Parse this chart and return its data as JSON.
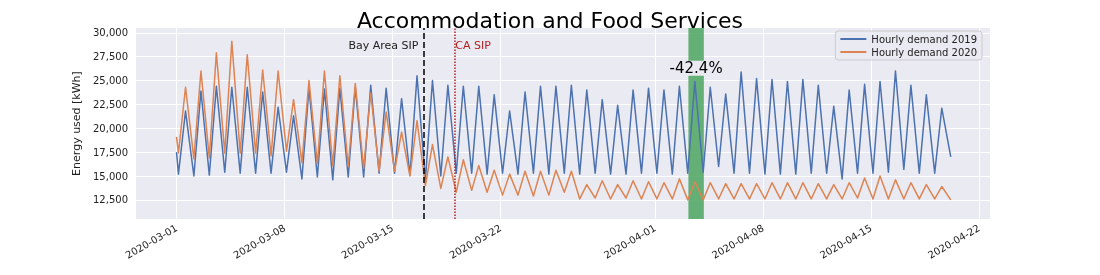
{
  "chart_data": {
    "type": "line",
    "title": "Accommodation and Food Services",
    "ylabel": "Energy used [kWh]",
    "x": [
      "2020-03-01T00:00",
      "2020-03-01T03:00",
      "2020-03-01T14:00",
      "2020-03-02T03:00",
      "2020-03-02T14:00",
      "2020-03-03T03:00",
      "2020-03-03T14:00",
      "2020-03-04T03:00",
      "2020-03-04T14:00",
      "2020-03-05T03:00",
      "2020-03-05T14:00",
      "2020-03-06T03:00",
      "2020-03-06T14:00",
      "2020-03-07T03:00",
      "2020-03-07T14:00",
      "2020-03-08T03:00",
      "2020-03-08T14:00",
      "2020-03-09T03:00",
      "2020-03-09T14:00",
      "2020-03-10T03:00",
      "2020-03-10T14:00",
      "2020-03-11T03:00",
      "2020-03-11T14:00",
      "2020-03-12T03:00",
      "2020-03-12T14:00",
      "2020-03-13T03:00",
      "2020-03-13T14:00",
      "2020-03-14T03:00",
      "2020-03-14T14:00",
      "2020-03-15T03:00",
      "2020-03-15T14:00",
      "2020-03-16T03:00",
      "2020-03-16T14:00",
      "2020-03-17T03:00",
      "2020-03-17T14:00",
      "2020-03-18T03:00",
      "2020-03-18T14:00",
      "2020-03-19T03:00",
      "2020-03-19T14:00",
      "2020-03-20T03:00",
      "2020-03-20T14:00",
      "2020-03-21T03:00",
      "2020-03-21T14:00",
      "2020-03-22T03:00",
      "2020-03-22T14:00",
      "2020-03-23T03:00",
      "2020-03-23T14:00",
      "2020-03-24T03:00",
      "2020-03-24T14:00",
      "2020-03-25T03:00",
      "2020-03-25T14:00",
      "2020-03-26T03:00",
      "2020-03-26T14:00",
      "2020-03-27T03:00",
      "2020-03-27T14:00",
      "2020-03-28T03:00",
      "2020-03-28T14:00",
      "2020-03-29T03:00",
      "2020-03-29T14:00",
      "2020-03-30T03:00",
      "2020-03-30T14:00",
      "2020-03-31T03:00",
      "2020-03-31T14:00",
      "2020-04-01T03:00",
      "2020-04-01T14:00",
      "2020-04-02T03:00",
      "2020-04-02T14:00",
      "2020-04-03T03:00",
      "2020-04-03T14:00",
      "2020-04-04T03:00",
      "2020-04-04T14:00",
      "2020-04-05T03:00",
      "2020-04-05T14:00",
      "2020-04-06T03:00",
      "2020-04-06T14:00",
      "2020-04-07T03:00",
      "2020-04-07T14:00",
      "2020-04-08T03:00",
      "2020-04-08T14:00",
      "2020-04-09T03:00",
      "2020-04-09T14:00",
      "2020-04-10T03:00",
      "2020-04-10T14:00",
      "2020-04-11T03:00",
      "2020-04-11T14:00",
      "2020-04-12T03:00",
      "2020-04-12T14:00",
      "2020-04-13T03:00",
      "2020-04-13T14:00",
      "2020-04-14T03:00",
      "2020-04-14T14:00",
      "2020-04-15T03:00",
      "2020-04-15T14:00",
      "2020-04-16T03:00",
      "2020-04-16T14:00",
      "2020-04-17T03:00",
      "2020-04-17T14:00",
      "2020-04-18T03:00",
      "2020-04-18T14:00",
      "2020-04-19T03:00",
      "2020-04-19T14:00",
      "2020-04-20T04:00"
    ],
    "series": [
      {
        "name": "Hourly demand 2019",
        "color": "#4c72b0",
        "values": [
          17500,
          15200,
          21800,
          15000,
          23900,
          15100,
          24400,
          15400,
          24300,
          15300,
          24300,
          15300,
          23800,
          15300,
          22200,
          15400,
          21300,
          14700,
          24200,
          14900,
          24100,
          14600,
          24200,
          14900,
          24300,
          14900,
          24500,
          15300,
          24200,
          15300,
          23100,
          15100,
          25500,
          14600,
          25000,
          15000,
          24500,
          15300,
          24400,
          15300,
          24400,
          15200,
          23500,
          15300,
          21800,
          15200,
          23800,
          15300,
          24400,
          15200,
          24400,
          15300,
          24500,
          15200,
          24000,
          15300,
          23000,
          15200,
          22400,
          15200,
          24000,
          15300,
          24200,
          15300,
          24000,
          15200,
          24400,
          15300,
          24900,
          15400,
          24300,
          16000,
          23600,
          15300,
          25900,
          15300,
          25200,
          15200,
          25100,
          15200,
          24900,
          15200,
          25100,
          15300,
          24500,
          15300,
          22300,
          14700,
          24000,
          15300,
          24600,
          15300,
          24900,
          15400,
          26000,
          15700,
          24500,
          15300,
          23500,
          15300,
          22100,
          17000
        ]
      },
      {
        "name": "Hourly demand 2020",
        "color": "#dd8452",
        "values": [
          19100,
          17400,
          24300,
          16800,
          26000,
          16900,
          27900,
          17400,
          29100,
          17400,
          27700,
          17400,
          26100,
          17100,
          26000,
          17600,
          23000,
          16400,
          25000,
          16300,
          26000,
          16100,
          25500,
          16000,
          24700,
          15800,
          23700,
          15500,
          21700,
          15500,
          19600,
          15000,
          20800,
          14000,
          18300,
          13700,
          17000,
          13300,
          16700,
          13500,
          16100,
          13300,
          15600,
          13000,
          15200,
          13000,
          15500,
          12900,
          15500,
          13000,
          15600,
          13300,
          15500,
          12600,
          14100,
          12700,
          14500,
          12600,
          14100,
          12700,
          14500,
          12600,
          14400,
          12600,
          14300,
          12600,
          14700,
          12500,
          14400,
          12500,
          14300,
          12600,
          14200,
          12600,
          14200,
          12600,
          14200,
          12600,
          14300,
          12600,
          14300,
          12600,
          14300,
          12600,
          14200,
          12600,
          14100,
          12600,
          14300,
          12700,
          14800,
          12600,
          15000,
          12600,
          14600,
          12600,
          14300,
          12600,
          14100,
          12600,
          13900,
          12500
        ]
      }
    ],
    "xlim": [
      "2020-02-27T09:00",
      "2020-04-22T17:00"
    ],
    "xticks": [
      "2020-03-01",
      "2020-03-08",
      "2020-03-15",
      "2020-03-22",
      "2020-04-01",
      "2020-04-08",
      "2020-04-15",
      "2020-04-22"
    ],
    "ylim": [
      10500,
      30500
    ],
    "yticks": [
      {
        "value": 12500,
        "label": "12,500"
      },
      {
        "value": 15000,
        "label": "15,000"
      },
      {
        "value": 17500,
        "label": "17,500"
      },
      {
        "value": 20000,
        "label": "20,000"
      },
      {
        "value": 22500,
        "label": "22,500"
      },
      {
        "value": 25000,
        "label": "25,000"
      },
      {
        "value": 27500,
        "label": "27,500"
      },
      {
        "value": 30000,
        "label": "30,000"
      }
    ],
    "ref_lines": [
      {
        "axis": "x",
        "value": "2020-03-17",
        "label": "Bay Area SIP",
        "color": "#000000",
        "line_style": "dashed"
      },
      {
        "axis": "x",
        "value": "2020-03-19",
        "label": "CA SIP",
        "color": "#b22222",
        "line_style": "dotted"
      }
    ],
    "bands": [
      {
        "axis": "x",
        "from": "2020-04-03T04:00",
        "to": "2020-04-04T04:00",
        "color": "#55a868"
      }
    ],
    "annotations": [
      {
        "text": "-42.4%",
        "x": "2020-04-03T16:00",
        "y": 25500
      }
    ],
    "grid": true,
    "legend": "top right",
    "marker": "none",
    "line_style": "solid"
  }
}
